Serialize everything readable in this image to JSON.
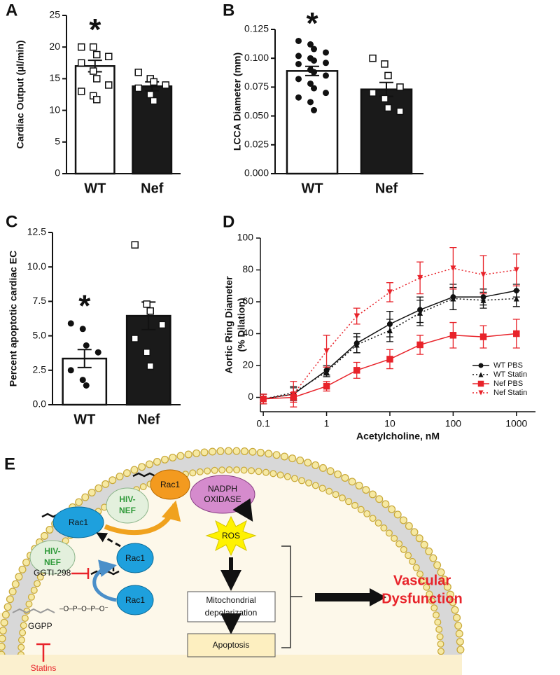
{
  "chart_data": [
    {
      "type": "bar",
      "panel_label": "A",
      "ylabel": "Cardiac Output (µl/min)",
      "annotation": "*",
      "categories": [
        "WT",
        "Nef"
      ],
      "values": [
        17.0,
        13.8
      ],
      "errors": [
        0.9,
        0.7
      ],
      "colors": [
        "#ffffff",
        "#1a1a1a"
      ],
      "markers": [
        "square",
        "square"
      ],
      "points": [
        [
          20,
          20,
          18.8,
          18.5,
          17.5,
          16.2,
          15,
          14,
          13,
          12.3,
          11.7
        ],
        [
          16,
          15,
          14.5,
          14,
          13.5,
          12.5,
          11.5
        ]
      ],
      "ylim": [
        0,
        25
      ],
      "yticks": [
        0,
        5,
        10,
        15,
        20,
        25
      ]
    },
    {
      "type": "bar",
      "panel_label": "B",
      "ylabel": "LCCA Diameter (mm)",
      "annotation": "*",
      "categories": [
        "WT",
        "Nef"
      ],
      "values": [
        0.089,
        0.073
      ],
      "errors": [
        0.004,
        0.006
      ],
      "colors": [
        "#ffffff",
        "#1a1a1a"
      ],
      "markers": [
        "circle",
        "square"
      ],
      "points": [
        [
          0.115,
          0.112,
          0.108,
          0.105,
          0.102,
          0.1,
          0.098,
          0.096,
          0.095,
          0.09,
          0.088,
          0.085,
          0.082,
          0.078,
          0.074,
          0.07,
          0.066,
          0.062,
          0.055
        ],
        [
          0.1,
          0.095,
          0.085,
          0.075,
          0.07,
          0.065,
          0.057,
          0.054
        ]
      ],
      "ylim": [
        0,
        0.125
      ],
      "yticks": [
        {
          "value": 0,
          "label": "0.000"
        },
        0.025,
        {
          "value": 0.05,
          "label": "0.050"
        },
        0.075,
        {
          "value": 0.1,
          "label": "0.100"
        },
        0.125
      ]
    },
    {
      "type": "bar",
      "panel_label": "C",
      "ylabel": "Percent apoptotic cardiac EC",
      "annotation": "*",
      "categories": [
        "WT",
        "Nef"
      ],
      "values": [
        3.35,
        6.45
      ],
      "errors": [
        0.65,
        1.0
      ],
      "colors": [
        "#ffffff",
        "#1a1a1a"
      ],
      "markers": [
        "circle",
        "square"
      ],
      "points": [
        [
          5.9,
          5.5,
          4.3,
          3.8,
          2.5,
          1.8,
          1.4
        ],
        [
          11.6,
          7.3,
          6.8,
          5.8,
          4.8,
          3.8,
          2.8
        ]
      ],
      "ylim": [
        0,
        12.5
      ],
      "yticks": [
        {
          "value": 0,
          "label": "0.0"
        },
        2.5,
        {
          "value": 5,
          "label": "5.0"
        },
        7.5,
        {
          "value": 10,
          "label": "10.0"
        },
        12.5
      ]
    },
    {
      "type": "line",
      "panel_label": "D",
      "ylabel": [
        "Aortic Ring Diameter",
        "(% Dilation)"
      ],
      "xlabel": "Acetylcholine, nM",
      "x": [
        0.1,
        0.3,
        1,
        3,
        10,
        30,
        100,
        300,
        1000
      ],
      "xscale": "log",
      "legend": "lower right",
      "series": [
        {
          "name": "WT PBS",
          "color": "#111111",
          "line_style": "solid",
          "marker": "circle",
          "values": [
            -1,
            2,
            17,
            34,
            46,
            55,
            63,
            63,
            67
          ],
          "errors": [
            3,
            4,
            3,
            6,
            8,
            8,
            8,
            5,
            4
          ]
        },
        {
          "name": "WT Statin",
          "color": "#111111",
          "line_style": "dotted",
          "marker": "triangle",
          "values": [
            -1,
            3,
            16,
            33,
            42,
            53,
            62,
            61,
            62
          ],
          "errors": [
            3,
            4,
            3,
            5,
            7,
            8,
            7,
            5,
            5
          ]
        },
        {
          "name": "Nef PBS",
          "color": "#e8232a",
          "line_style": "solid",
          "marker": "square",
          "values": [
            -1,
            0,
            7,
            17,
            24,
            33,
            39,
            38,
            40
          ],
          "errors": [
            3,
            3,
            3,
            5,
            6,
            6,
            8,
            7,
            9
          ]
        },
        {
          "name": "Nef Statin",
          "color": "#e8232a",
          "line_style": "dotted",
          "marker": "triangle-down",
          "values": [
            -1,
            2,
            29,
            51,
            66,
            75,
            81,
            77,
            80
          ],
          "errors": [
            3,
            8,
            10,
            5,
            6,
            10,
            13,
            12,
            10
          ]
        }
      ],
      "xlim": [
        0.09,
        2000
      ],
      "xticks": [
        0.1,
        1,
        10,
        100,
        1000
      ],
      "ylim": [
        -9,
        100
      ],
      "yticks": [
        0,
        20,
        40,
        60,
        80,
        100
      ]
    }
  ],
  "diagram": {
    "panel_label": "E",
    "rac1_active": "Rac1",
    "nadph": [
      "NADPH",
      "OXIDASE"
    ],
    "hiv_nef_upper": [
      "HIV-",
      "NEF"
    ],
    "rac1_membrane": "Rac1",
    "hiv_nef_lower": [
      "HIV-",
      "NEF"
    ],
    "rac1_prenylated": "Rac1",
    "rac1_free": "Rac1",
    "ggti": "GGTI-298",
    "ggpp": "GGPP",
    "statins": "Statins",
    "ros": "ROS",
    "mito": [
      "Mitochondrial",
      "depolarization"
    ],
    "apoptosis": "Apoptosis",
    "outcome": [
      "Vascular",
      "Dysfunction"
    ]
  }
}
